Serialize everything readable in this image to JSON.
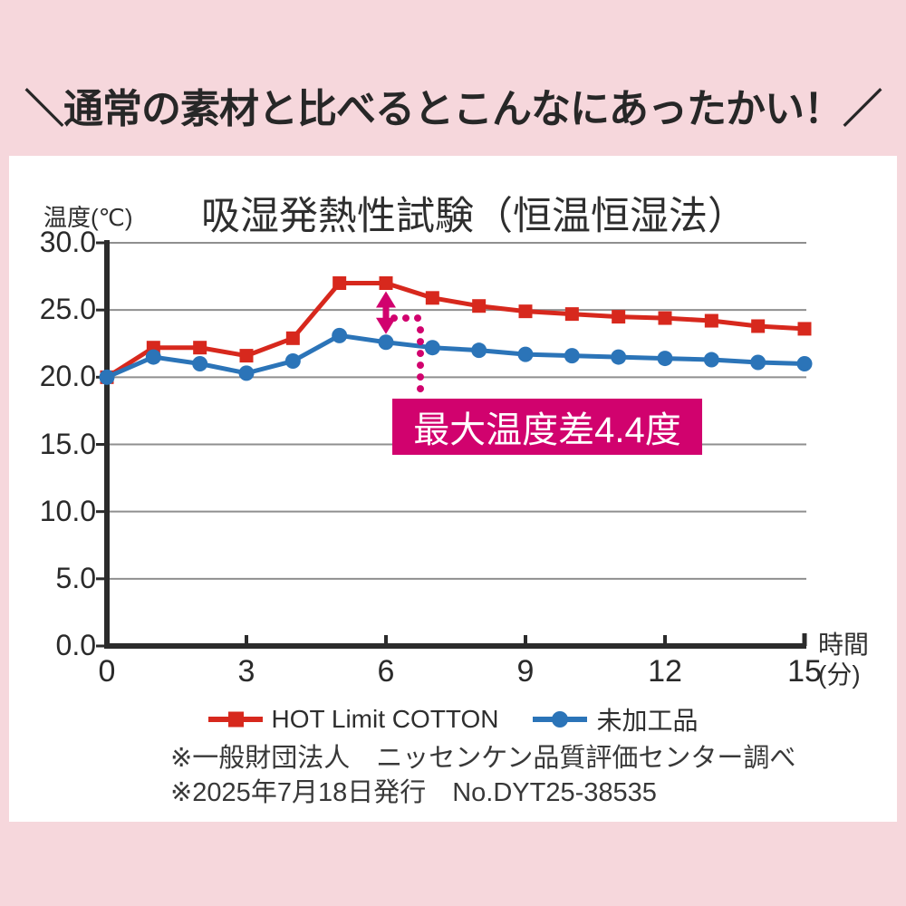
{
  "page": {
    "background_color": "#f6d7dc",
    "panel_color": "#ffffff"
  },
  "headline": "＼通常の素材と比べるとこんなにあったかい！／",
  "chart_data": {
    "type": "line",
    "title": "吸湿発熱性試験（恒温恒湿法）",
    "ylabel": "温度(℃)",
    "x_unit_top": "時間",
    "x_unit_bottom": "(分)",
    "xlim": [
      0,
      15
    ],
    "ylim": [
      0,
      30
    ],
    "grid": true,
    "grid_color": "#8f8f8f",
    "axis_color": "#2b2b2b",
    "x": [
      0,
      1,
      2,
      3,
      4,
      5,
      6,
      7,
      8,
      9,
      10,
      11,
      12,
      13,
      14,
      15
    ],
    "xticks": [
      {
        "value": 0,
        "label": "0"
      },
      {
        "value": 3,
        "label": "3"
      },
      {
        "value": 6,
        "label": "6"
      },
      {
        "value": 9,
        "label": "9"
      },
      {
        "value": 12,
        "label": "12"
      },
      {
        "value": 15,
        "label": "15"
      }
    ],
    "yticks": [
      {
        "value": 30,
        "label": "30.0"
      },
      {
        "value": 25,
        "label": "25.0"
      },
      {
        "value": 20,
        "label": "20.0"
      },
      {
        "value": 15,
        "label": "15.0"
      },
      {
        "value": 10,
        "label": "10.0"
      },
      {
        "value": 5,
        "label": "5.0"
      },
      {
        "value": 0,
        "label": "0.0"
      }
    ],
    "series": [
      {
        "name": "HOT Limit COTTON",
        "color": "#d7281d",
        "marker": "square",
        "values": [
          20.0,
          22.2,
          22.2,
          21.6,
          22.9,
          27.0,
          27.0,
          25.9,
          25.3,
          24.9,
          24.7,
          24.5,
          24.4,
          24.2,
          23.8,
          23.6
        ]
      },
      {
        "name": "未加工品",
        "color": "#2b74b8",
        "marker": "circle",
        "values": [
          20.0,
          21.5,
          21.0,
          20.3,
          21.2,
          23.1,
          22.6,
          22.2,
          22.0,
          21.7,
          21.6,
          21.5,
          21.4,
          21.3,
          21.1,
          21.0
        ]
      }
    ],
    "legend_position": "bottom",
    "annotation": {
      "label": "最大温度差4.4度",
      "color": "#d1026e",
      "at_x": 6,
      "from_value": 27.0,
      "to_value": 22.6,
      "difference": 4.4
    }
  },
  "footnotes": [
    "※一般財団法人　ニッセンケン品質評価センター調べ",
    "※2025年7月18日発行　No.DYT25-38535"
  ]
}
